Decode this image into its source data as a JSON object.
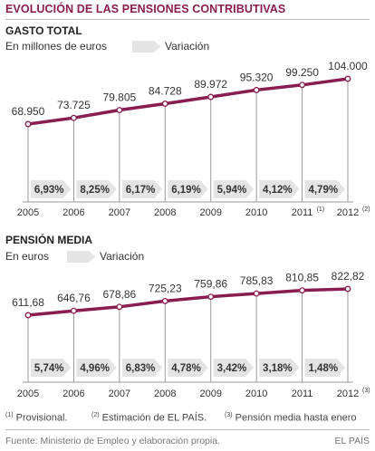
{
  "title": "EVOLUCIÓN DE LAS PENSIONES CONTRIBUTIVAS",
  "legend_variacion": "Variación",
  "colors": {
    "line": "#8a1d4f",
    "arrow": "#e4e4e4",
    "title": "#8a1d4f"
  },
  "chart_data": [
    {
      "type": "line",
      "title": "GASTO TOTAL",
      "ylabel": "En millones de euros",
      "x": [
        "2005",
        "2006",
        "2007",
        "2008",
        "2009",
        "2010",
        "2011",
        "2012"
      ],
      "x_footnotes": [
        "",
        "",
        "",
        "",
        "",
        "",
        "(1)",
        "(2)"
      ],
      "series": [
        {
          "values": [
            68950,
            73725,
            79805,
            84728,
            89972,
            95320,
            99250,
            104000
          ],
          "labels": [
            "68.950",
            "73.725",
            "79.805",
            "84.728",
            "89.972",
            "95.320",
            "99.250",
            "104.000"
          ]
        }
      ],
      "variation": [
        "6,93%",
        "8,25%",
        "6,17%",
        "6,19%",
        "5,94%",
        "4,12%",
        "4,79%"
      ]
    },
    {
      "type": "line",
      "title": "PENSIÓN MEDIA",
      "ylabel": "En euros",
      "x": [
        "2005",
        "2006",
        "2007",
        "2008",
        "2009",
        "2010",
        "2011",
        "2012"
      ],
      "x_footnotes": [
        "",
        "",
        "",
        "",
        "",
        "",
        "",
        "(3)"
      ],
      "series": [
        {
          "values": [
            611.68,
            646.76,
            678.86,
            725.23,
            759.86,
            785.83,
            810.85,
            822.82
          ],
          "labels": [
            "611,68",
            "646,76",
            "678,86",
            "725,23",
            "759,86",
            "785,83",
            "810,85",
            "822,82"
          ]
        }
      ],
      "variation": [
        "5,74%",
        "4,96%",
        "6,83%",
        "4,78%",
        "3,42%",
        "3,18%",
        "1,48%"
      ]
    }
  ],
  "notes": [
    {
      "mark": "(1)",
      "text": "Provisional."
    },
    {
      "mark": "(2)",
      "text": "Estimación de EL PAÍS."
    },
    {
      "mark": "(3)",
      "text": "Pensión media hasta enero"
    }
  ],
  "source": "Fuente: Ministerio de Empleo y elaboración propia.",
  "brand": "EL PAÍS"
}
